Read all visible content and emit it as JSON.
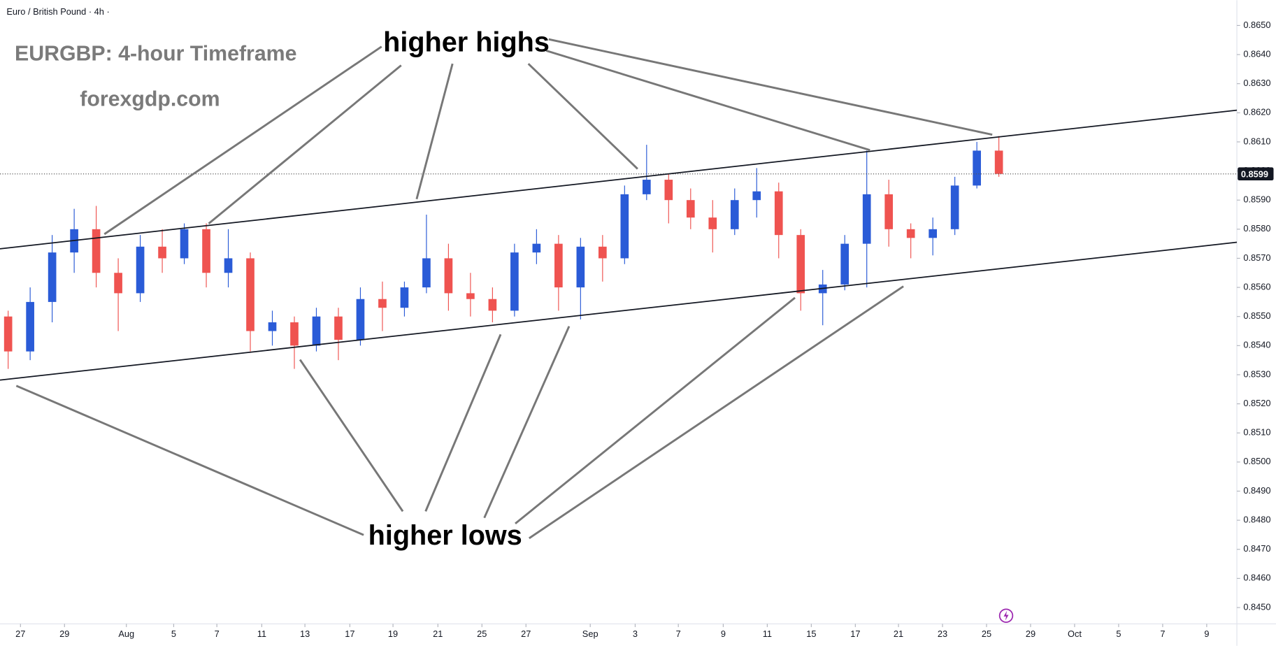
{
  "chart_data": {
    "type": "candlestick",
    "symbol": "Euro / British Pound · 4h ·",
    "title": "EURGBP: 4-hour Timeframe",
    "subtitle": "forexgdp.com",
    "annotations": [
      "higher highs",
      "higher lows"
    ],
    "current_price": 0.8599,
    "up_color": "#2a5bd7",
    "down_color": "#ef5350",
    "open": [
      0.855,
      0.8538,
      0.8555,
      0.8572,
      0.858,
      0.8565,
      0.8558,
      0.8574,
      0.857,
      0.858,
      0.8565,
      0.857,
      0.8545,
      0.8548,
      0.854,
      0.855,
      0.8542,
      0.8556,
      0.8553,
      0.856,
      0.857,
      0.8558,
      0.8556,
      0.8552,
      0.8572,
      0.8575,
      0.856,
      0.8574,
      0.857,
      0.8592,
      0.8597,
      0.859,
      0.8584,
      0.858,
      0.859,
      0.8593,
      0.8578,
      0.8558,
      0.8561,
      0.8575,
      0.8592,
      0.858,
      0.8577,
      0.858,
      0.8595,
      0.8607
    ],
    "high": [
      0.8552,
      0.856,
      0.8578,
      0.8587,
      0.8588,
      0.857,
      0.8578,
      0.858,
      0.8582,
      0.8582,
      0.858,
      0.8572,
      0.8552,
      0.855,
      0.8553,
      0.8553,
      0.856,
      0.8562,
      0.8562,
      0.8585,
      0.8575,
      0.8565,
      0.856,
      0.8575,
      0.858,
      0.8578,
      0.8577,
      0.8578,
      0.8595,
      0.8609,
      0.8599,
      0.8594,
      0.859,
      0.8594,
      0.8601,
      0.8596,
      0.858,
      0.8566,
      0.8578,
      0.8607,
      0.8597,
      0.8582,
      0.8584,
      0.8598,
      0.861,
      0.8612
    ],
    "low": [
      0.8532,
      0.8535,
      0.8548,
      0.8565,
      0.856,
      0.8545,
      0.8555,
      0.8565,
      0.8568,
      0.856,
      0.856,
      0.8538,
      0.854,
      0.8532,
      0.8538,
      0.8535,
      0.854,
      0.8545,
      0.855,
      0.8558,
      0.8552,
      0.855,
      0.8548,
      0.855,
      0.8568,
      0.8552,
      0.8549,
      0.8562,
      0.8568,
      0.859,
      0.8582,
      0.858,
      0.8572,
      0.8578,
      0.8584,
      0.857,
      0.8552,
      0.8547,
      0.8559,
      0.856,
      0.8574,
      0.857,
      0.8571,
      0.8578,
      0.8594,
      0.8598
    ],
    "close": [
      0.8538,
      0.8555,
      0.8572,
      0.858,
      0.8565,
      0.8558,
      0.8574,
      0.857,
      0.858,
      0.8565,
      0.857,
      0.8545,
      0.8548,
      0.854,
      0.855,
      0.8542,
      0.8556,
      0.8553,
      0.856,
      0.857,
      0.8558,
      0.8556,
      0.8552,
      0.8572,
      0.8575,
      0.856,
      0.8574,
      0.857,
      0.8592,
      0.8597,
      0.859,
      0.8584,
      0.858,
      0.859,
      0.8593,
      0.8578,
      0.8558,
      0.8561,
      0.8575,
      0.8592,
      0.858,
      0.8577,
      0.858,
      0.8595,
      0.8607,
      0.8599
    ],
    "xlim": [
      -0.37,
      55.81
    ],
    "xticks": [
      {
        "value": 0.56,
        "label": "27"
      },
      {
        "value": 2.56,
        "label": "29"
      },
      {
        "value": 5.37,
        "label": "Aug"
      },
      {
        "value": 7.52,
        "label": "5"
      },
      {
        "value": 9.48,
        "label": "7"
      },
      {
        "value": 11.52,
        "label": "11"
      },
      {
        "value": 13.48,
        "label": "13"
      },
      {
        "value": 15.52,
        "label": "17"
      },
      {
        "value": 17.48,
        "label": "19"
      },
      {
        "value": 19.52,
        "label": "21"
      },
      {
        "value": 21.52,
        "label": "25"
      },
      {
        "value": 23.52,
        "label": "27"
      },
      {
        "value": 26.44,
        "label": "Sep"
      },
      {
        "value": 28.48,
        "label": "3"
      },
      {
        "value": 30.44,
        "label": "7"
      },
      {
        "value": 32.48,
        "label": "9"
      },
      {
        "value": 34.48,
        "label": "11"
      },
      {
        "value": 36.48,
        "label": "15"
      },
      {
        "value": 38.48,
        "label": "17"
      },
      {
        "value": 40.44,
        "label": "21"
      },
      {
        "value": 42.44,
        "label": "23"
      },
      {
        "value": 44.44,
        "label": "25"
      },
      {
        "value": 46.44,
        "label": "29"
      },
      {
        "value": 48.44,
        "label": "Oct"
      },
      {
        "value": 50.44,
        "label": "5"
      },
      {
        "value": 52.44,
        "label": "7"
      },
      {
        "value": 54.44,
        "label": "9"
      }
    ],
    "ylim": [
      0.84444,
      0.86587
    ],
    "yticks": [
      {
        "value": 0.845,
        "label": "0.8450"
      },
      {
        "value": 0.846,
        "label": "0.8460"
      },
      {
        "value": 0.847,
        "label": "0.8470"
      },
      {
        "value": 0.848,
        "label": "0.8480"
      },
      {
        "value": 0.849,
        "label": "0.8490"
      },
      {
        "value": 0.85,
        "label": "0.8500"
      },
      {
        "value": 0.851,
        "label": "0.8510"
      },
      {
        "value": 0.852,
        "label": "0.8520"
      },
      {
        "value": 0.853,
        "label": "0.8530"
      },
      {
        "value": 0.854,
        "label": "0.8540"
      },
      {
        "value": 0.855,
        "label": "0.8550"
      },
      {
        "value": 0.856,
        "label": "0.8560"
      },
      {
        "value": 0.857,
        "label": "0.8570"
      },
      {
        "value": 0.858,
        "label": "0.8580"
      },
      {
        "value": 0.859,
        "label": "0.8590"
      },
      {
        "value": 0.86,
        "label": "0.8600"
      },
      {
        "value": 0.861,
        "label": "0.8610"
      },
      {
        "value": 0.862,
        "label": "0.8620"
      },
      {
        "value": 0.863,
        "label": "0.8630"
      },
      {
        "value": 0.864,
        "label": "0.8640"
      },
      {
        "value": 0.865,
        "label": "0.8650"
      }
    ]
  }
}
